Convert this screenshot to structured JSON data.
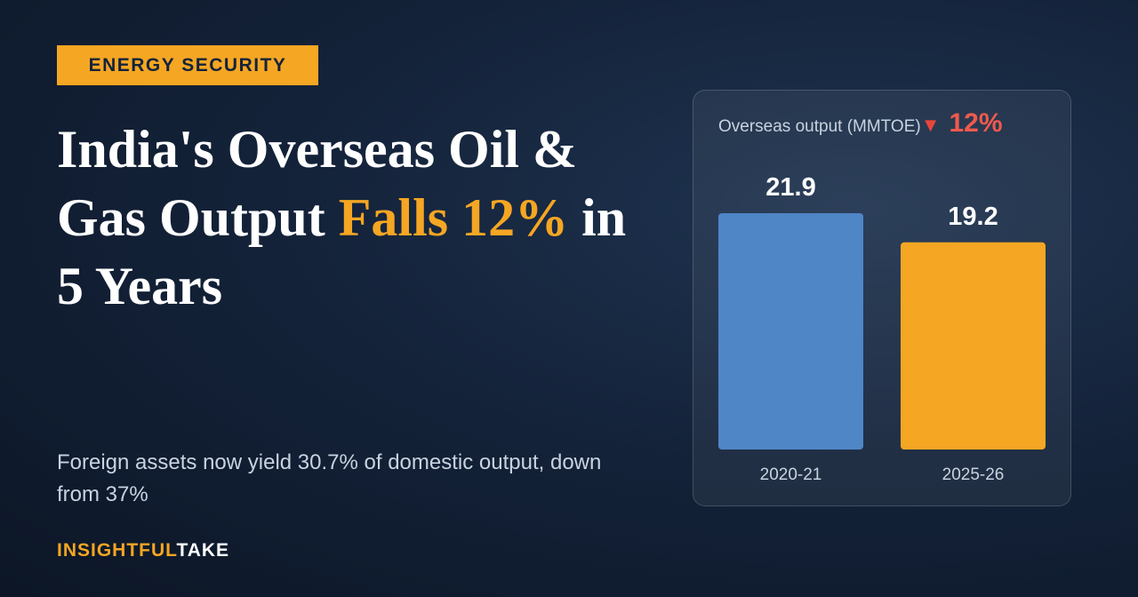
{
  "tag": "ENERGY SECURITY",
  "headline": {
    "part1": "India's Overseas Oil & Gas Output",
    "highlight1": "Falls",
    "highlight2": "12%",
    "part2": "in 5 Years"
  },
  "subtitle": "Foreign assets now yield 30.7% of domestic output, down from 37%",
  "brand": {
    "first": "INSIGHTFUL",
    "second": "TAKE"
  },
  "chart_data": {
    "type": "bar",
    "title": "Overseas output (MMTOE)",
    "change_arrow": "▼",
    "change_label": "12%",
    "categories": [
      "2020-21",
      "2025-26"
    ],
    "values": [
      21.9,
      19.2
    ],
    "colors": [
      "#4f86c6",
      "#f5a623"
    ]
  }
}
